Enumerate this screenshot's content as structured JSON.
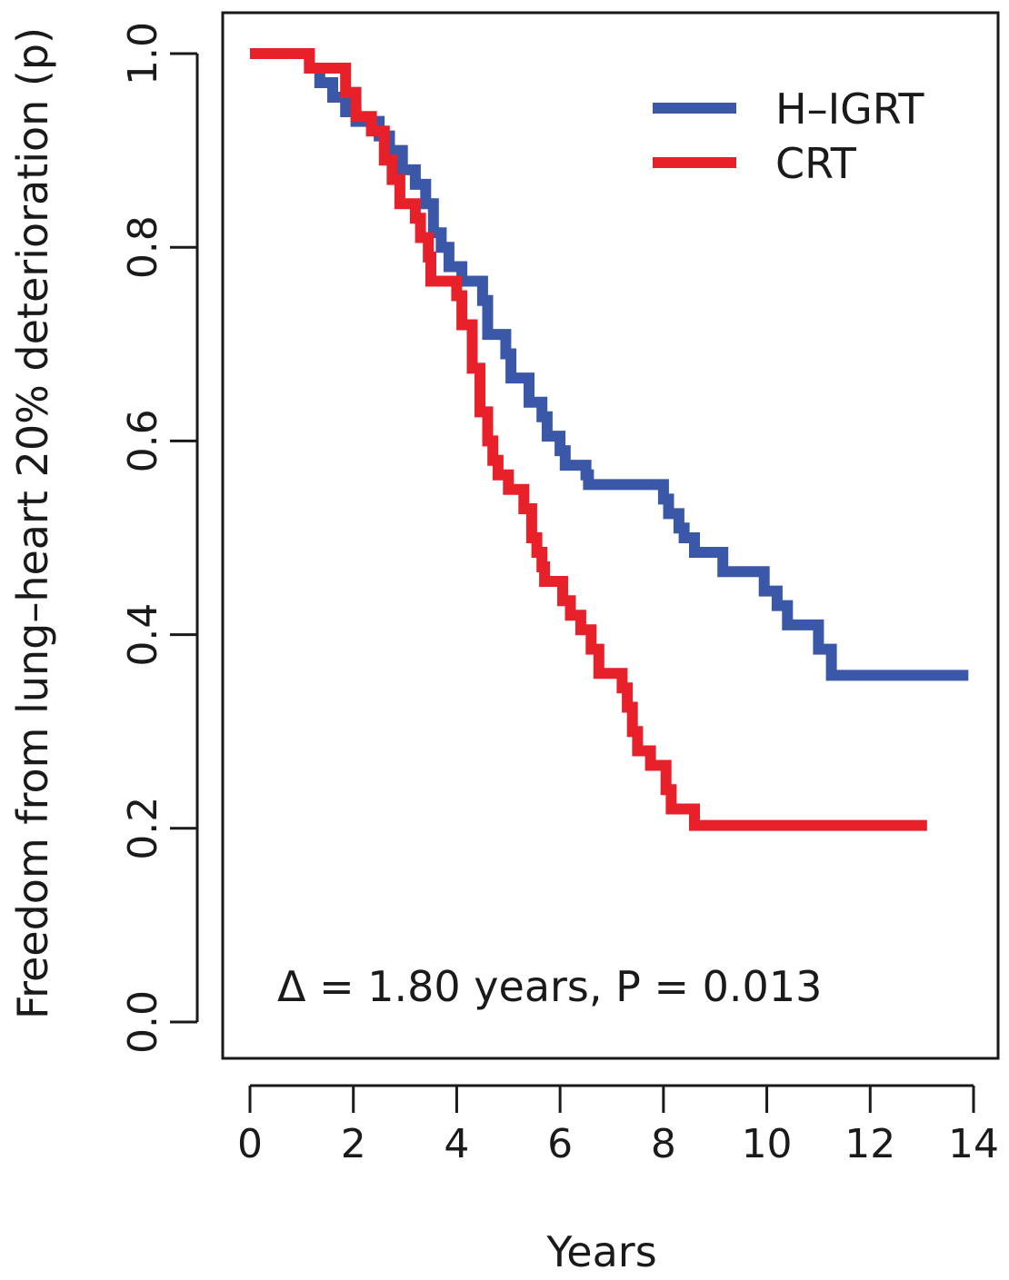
{
  "chart_data": {
    "type": "line",
    "subtype": "kaplan-meier step",
    "xlabel": "Years",
    "ylabel": "Freedom from lung–heart 20% deterioration (p)",
    "xlim": [
      0,
      14
    ],
    "ylim": [
      0,
      1
    ],
    "x_ticks": [
      0,
      2,
      4,
      6,
      8,
      10,
      12,
      14
    ],
    "x_tick_labels": [
      "0",
      "2",
      "4",
      "6",
      "8",
      "10",
      "12",
      "14"
    ],
    "y_ticks": [
      0,
      0.2,
      0.4,
      0.6,
      0.8,
      1.0
    ],
    "y_tick_labels": [
      "0.0",
      "0.2",
      "0.4",
      "0.6",
      "0.8",
      "1.0"
    ],
    "legend_position": "top-right",
    "annotation": "Δ = 1.80 years, P = 0.013",
    "series": [
      {
        "name": "H–IGRT",
        "color": "#3a57a8",
        "x": [
          0,
          1.15,
          1.35,
          1.6,
          1.85,
          2.05,
          2.5,
          2.7,
          2.95,
          3.2,
          3.4,
          3.55,
          3.7,
          3.85,
          4.1,
          4.5,
          4.6,
          4.95,
          5.05,
          5.4,
          5.65,
          5.75,
          6.0,
          6.1,
          6.5,
          6.55,
          8.0,
          8.1,
          8.3,
          8.4,
          8.6,
          9.15,
          9.45,
          9.95,
          10.2,
          10.4,
          11.0,
          11.25,
          13.9
        ],
        "y": [
          1.0,
          0.985,
          0.97,
          0.955,
          0.94,
          0.93,
          0.915,
          0.9,
          0.88,
          0.865,
          0.845,
          0.815,
          0.8,
          0.78,
          0.765,
          0.745,
          0.71,
          0.69,
          0.665,
          0.64,
          0.625,
          0.605,
          0.59,
          0.575,
          0.565,
          0.555,
          0.54,
          0.525,
          0.51,
          0.5,
          0.485,
          0.465,
          0.465,
          0.445,
          0.43,
          0.41,
          0.385,
          0.358,
          0.358
        ]
      },
      {
        "name": "CRT",
        "color": "#e8202a",
        "x": [
          0,
          1.0,
          1.15,
          1.8,
          1.85,
          2.05,
          2.35,
          2.6,
          2.75,
          2.9,
          3.2,
          3.3,
          3.45,
          3.5,
          4.0,
          4.1,
          4.3,
          4.45,
          4.6,
          4.7,
          4.8,
          5.0,
          5.3,
          5.45,
          5.55,
          5.65,
          5.7,
          6.05,
          6.2,
          6.4,
          6.6,
          6.75,
          7.1,
          7.2,
          7.3,
          7.4,
          7.5,
          7.6,
          7.75,
          8.05,
          8.15,
          8.6,
          13.1
        ],
        "y": [
          1.0,
          1.0,
          0.985,
          0.985,
          0.96,
          0.935,
          0.92,
          0.89,
          0.87,
          0.845,
          0.83,
          0.81,
          0.79,
          0.765,
          0.75,
          0.72,
          0.675,
          0.63,
          0.6,
          0.58,
          0.565,
          0.55,
          0.53,
          0.5,
          0.485,
          0.47,
          0.455,
          0.435,
          0.42,
          0.405,
          0.385,
          0.36,
          0.36,
          0.345,
          0.325,
          0.3,
          0.28,
          0.28,
          0.265,
          0.24,
          0.22,
          0.203,
          0.203
        ]
      }
    ]
  }
}
